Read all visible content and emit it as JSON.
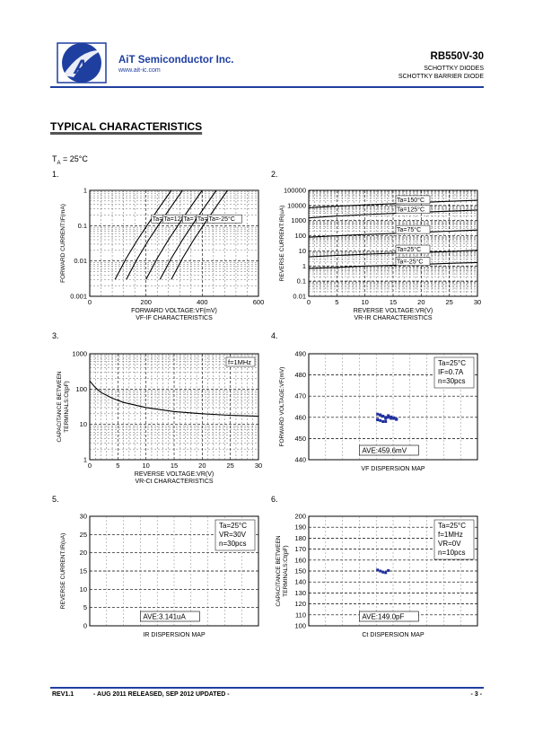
{
  "header": {
    "logo_text": "Ai",
    "company": "AiT Semiconductor Inc.",
    "website": "www.ait-ic.com",
    "part": "RB550V-30",
    "subtitle1": "SCHOTTKY DIODES",
    "subtitle2": "SCHOTTKY BARRIER DIODE"
  },
  "section_title": "TYPICAL CHARACTERISTICS",
  "ta_prefix": "T",
  "ta_sub": "A",
  "ta_value": " = 25°C",
  "figure_numbers": [
    "1.",
    "2.",
    "3.",
    "4.",
    "5.",
    "6."
  ],
  "footer": {
    "rev": "REV1.1",
    "release": "- AUG 2011 RELEASED, SEP 2012 UPDATED -",
    "page": "- 3 -"
  },
  "chart_data": [
    {
      "type": "line",
      "id": "vf-if",
      "xlabel": "FORWARD VOLTAGE:VF(mV)",
      "ylabel": "FORWARD CURRENT:IF(mA)",
      "caption": "VF-IF CHARACTERISTICS",
      "xlim": [
        0,
        600
      ],
      "ylim": [
        0.001,
        1
      ],
      "ylog": true,
      "xticks": [
        "0",
        "200",
        "400",
        "600"
      ],
      "yticks": [
        "1",
        "0.1",
        "0.01",
        "0.001"
      ],
      "series": [
        {
          "name": "Ta=150°C",
          "x": [
            90,
            130,
            170,
            210,
            250,
            290
          ],
          "y": [
            0.003,
            0.012,
            0.04,
            0.12,
            0.35,
            1
          ]
        },
        {
          "name": "Ta=125°C",
          "x": [
            130,
            170,
            210,
            250,
            290,
            330
          ],
          "y": [
            0.003,
            0.012,
            0.04,
            0.12,
            0.35,
            1
          ]
        },
        {
          "name": "Ta=75°C",
          "x": [
            200,
            240,
            280,
            320,
            360,
            400
          ],
          "y": [
            0.003,
            0.012,
            0.04,
            0.12,
            0.35,
            1
          ]
        },
        {
          "name": "Ta=25°C",
          "x": [
            250,
            290,
            330,
            370,
            410,
            450
          ],
          "y": [
            0.003,
            0.012,
            0.04,
            0.12,
            0.35,
            1
          ]
        },
        {
          "name": "Ta=-25°C",
          "x": [
            290,
            330,
            370,
            410,
            450,
            490
          ],
          "y": [
            0.003,
            0.012,
            0.04,
            0.12,
            0.35,
            1
          ]
        }
      ]
    },
    {
      "type": "line",
      "id": "vr-ir",
      "xlabel": "REVERSE VOLTAGE:VR(V)",
      "ylabel": "REVERSE CURRENT:IR(uA)",
      "caption": "VR-IR CHARACTERISTICS",
      "xlim": [
        0,
        30
      ],
      "ylim": [
        0.01,
        100000
      ],
      "ylog": true,
      "xticks": [
        "0",
        "5",
        "10",
        "15",
        "20",
        "25",
        "30"
      ],
      "yticks": [
        "100000",
        "10000",
        "1000",
        "100",
        "10",
        "1",
        "0.1",
        "0.01"
      ],
      "series": [
        {
          "name": "Ta=150°C",
          "x": [
            0,
            5,
            10,
            15,
            20,
            25,
            30
          ],
          "y": [
            7000,
            9000,
            11000,
            13000,
            16000,
            19000,
            22000
          ]
        },
        {
          "name": "Ta=125°C",
          "x": [
            0,
            5,
            10,
            15,
            20,
            25,
            30
          ],
          "y": [
            1500,
            2000,
            2500,
            3000,
            3600,
            4200,
            5000
          ]
        },
        {
          "name": "Ta=75°C",
          "x": [
            0,
            5,
            10,
            15,
            20,
            25,
            30
          ],
          "y": [
            80,
            100,
            120,
            140,
            170,
            200,
            240
          ]
        },
        {
          "name": "Ta=25°C",
          "x": [
            0,
            5,
            10,
            15,
            20,
            25,
            30
          ],
          "y": [
            4,
            5,
            6,
            7,
            8,
            9,
            11
          ]
        },
        {
          "name": "Ta=-25°C",
          "x": [
            0,
            5,
            10,
            15,
            20,
            25,
            30
          ],
          "y": [
            0.7,
            0.8,
            1,
            1.1,
            1.3,
            1.5,
            1.7
          ]
        }
      ]
    },
    {
      "type": "line",
      "id": "vr-ct",
      "xlabel": "REVERSE VOLTAGE:VR(V)",
      "ylabel": "CAPACITANCE BETWEEN TERMINALS:Ct(pF)",
      "caption": "VR-Ct CHARACTERISTICS",
      "annotation": "f=1MHz",
      "xlim": [
        0,
        30
      ],
      "ylim": [
        1,
        1000
      ],
      "ylog": true,
      "xticks": [
        "0",
        "5",
        "10",
        "15",
        "20",
        "25",
        "30"
      ],
      "yticks": [
        "1000",
        "100",
        "10",
        "1"
      ],
      "series": [
        {
          "x": [
            0,
            1,
            2,
            4,
            6,
            10,
            15,
            20,
            25,
            30
          ],
          "y": [
            170,
            110,
            80,
            55,
            42,
            30,
            23,
            20,
            18,
            17
          ]
        }
      ]
    },
    {
      "type": "scatter",
      "id": "vf-dispersion",
      "ylabel": "FORWARD VOLTAGE:VF(mV)",
      "caption": "VF DISPERSION MAP",
      "annotations": [
        "Ta=25°C",
        "IF=0.7A",
        "n=30pcs"
      ],
      "ave_label": "AVE:459.6mV",
      "ylim": [
        440,
        490
      ],
      "yticks": [
        "490",
        "480",
        "470",
        "460",
        "450",
        "440"
      ],
      "points": [
        461.5,
        461,
        460.5,
        460,
        460,
        459.5,
        459.5,
        459,
        459,
        458.5,
        458,
        458,
        460.8,
        460.2,
        459.8,
        459.2,
        458.8,
        461.2,
        460.6,
        459.4
      ]
    },
    {
      "type": "scatter",
      "id": "ir-dispersion",
      "ylabel": "REVERSE CURRENT:IR(uA)",
      "caption": "IR DISPERSION MAP",
      "annotations": [
        "Ta=25°C",
        "VR=30V",
        "n=30pcs"
      ],
      "ave_label": "AVE:3.141uA",
      "ylim": [
        0,
        30
      ],
      "yticks": [
        "30",
        "25",
        "20",
        "15",
        "10",
        "5",
        "0"
      ],
      "points": [
        3.4,
        3.2,
        3.1,
        3.0,
        3.3,
        2.9,
        3.5,
        3.1
      ]
    },
    {
      "type": "scatter",
      "id": "ct-dispersion",
      "ylabel": "CAPACITANCE BETWEEN TERMINALS:Ct(pF)",
      "caption": "Ct DISPERSION MAP",
      "annotations": [
        "Ta=25°C",
        "f=1MHz",
        "VR=0V",
        "n=10pcs"
      ],
      "ave_label": "AVE:149.0pF",
      "ylim": [
        100,
        200
      ],
      "yticks": [
        "200",
        "190",
        "180",
        "170",
        "160",
        "150",
        "140",
        "130",
        "120",
        "110",
        "100"
      ],
      "points": [
        151,
        150,
        149,
        148.5,
        150.5
      ]
    }
  ]
}
